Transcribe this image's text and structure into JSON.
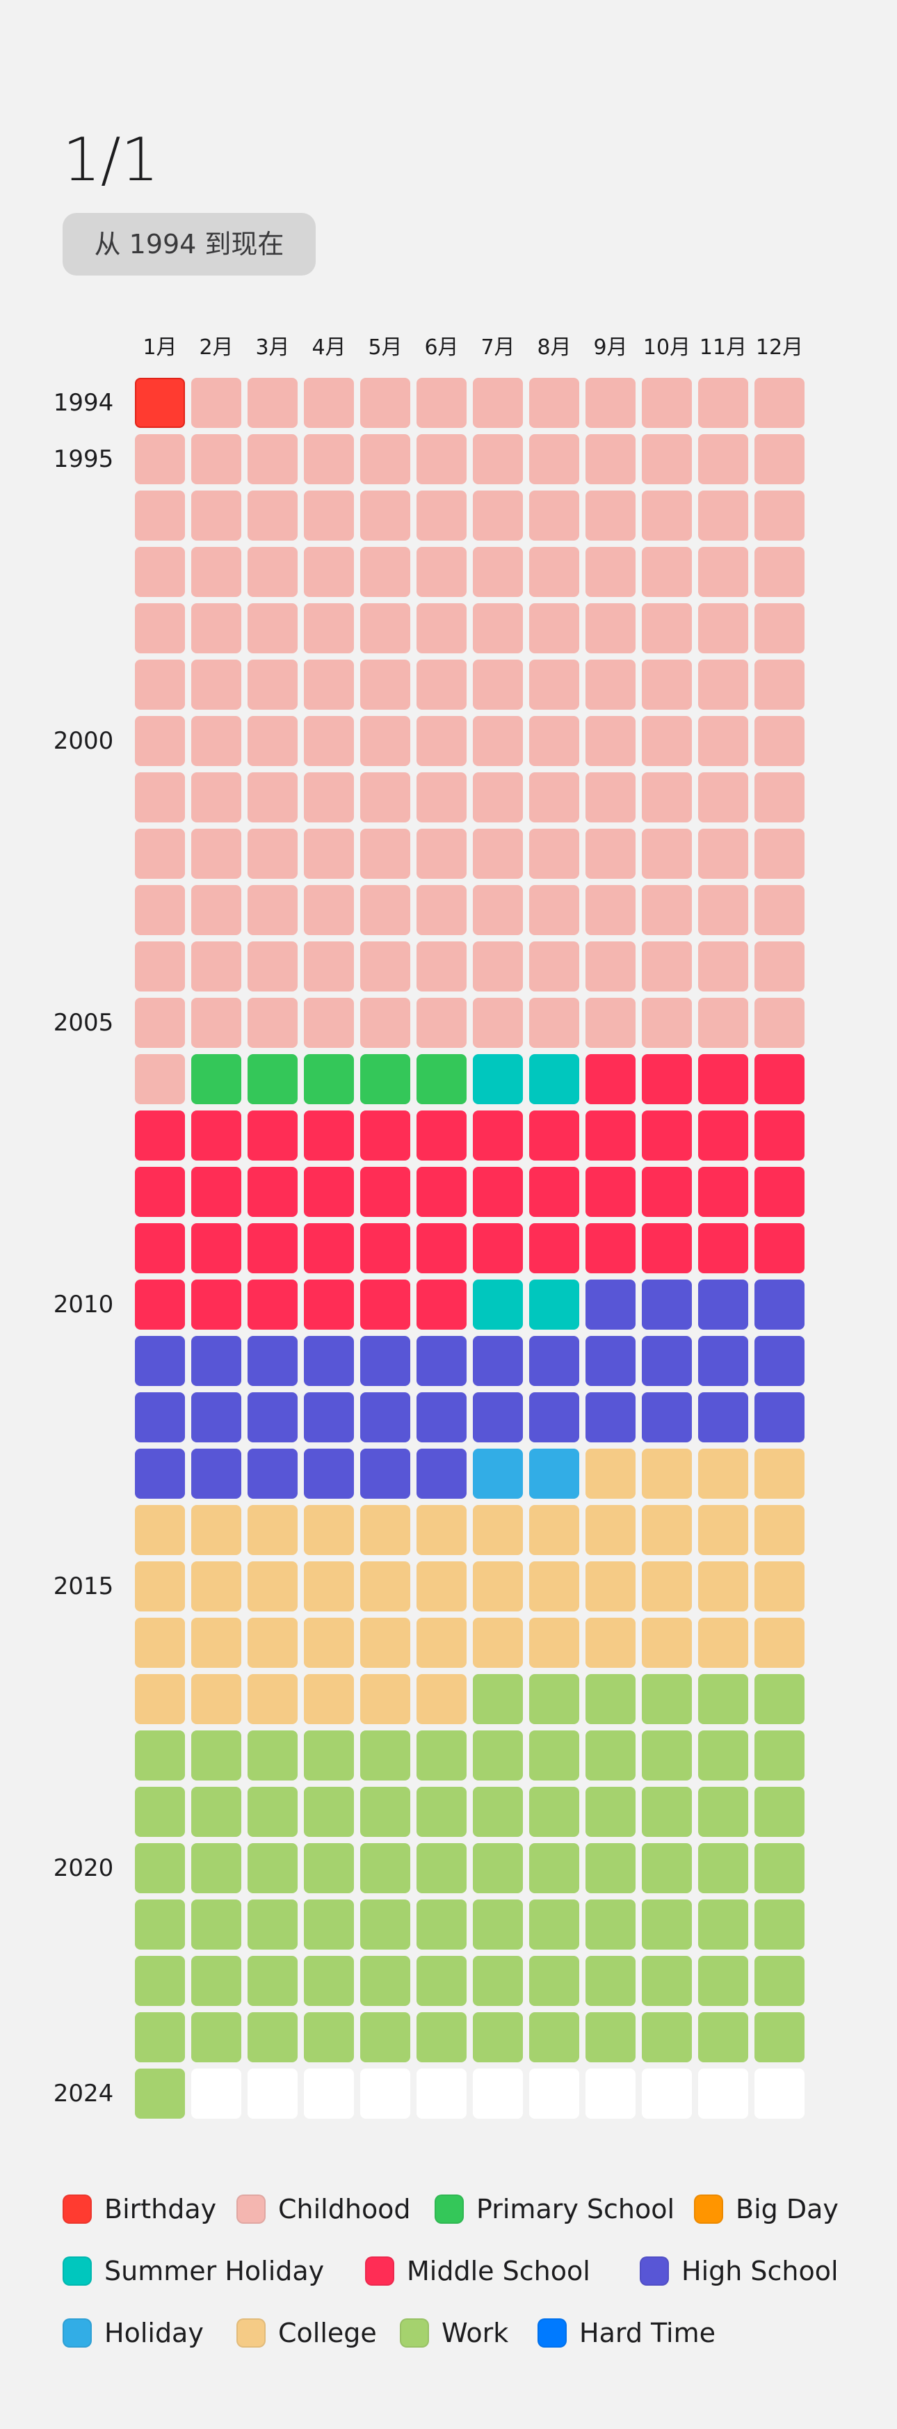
{
  "header": {
    "title": "1/1",
    "range_label": "从 1994 到现在"
  },
  "months": [
    "1月",
    "2月",
    "3月",
    "4月",
    "5月",
    "6月",
    "7月",
    "8月",
    "9月",
    "10月",
    "11月",
    "12月"
  ],
  "years": [
    {
      "row": 0,
      "label": "1994"
    },
    {
      "row": 1,
      "label": "1995"
    },
    {
      "row": 6,
      "label": "2000"
    },
    {
      "row": 11,
      "label": "2005"
    },
    {
      "row": 16,
      "label": "2010"
    },
    {
      "row": 21,
      "label": "2015"
    },
    {
      "row": 26,
      "label": "2020"
    },
    {
      "row": 30,
      "label": "2024"
    }
  ],
  "colors": {
    "birthday": "#ff3b30",
    "childhood": "#f4b6b0",
    "primary": "#34c759",
    "bigday": "#ff9500",
    "summer": "#00c7be",
    "middle": "#ff2d55",
    "high": "#5856d6",
    "holiday": "#32ade6",
    "college": "#f5cb86",
    "work": "#a5d26e",
    "hardtime": "#007aff",
    "future": "#ffffff"
  },
  "periods": [
    {
      "key": "birthday",
      "start": 0,
      "end": 0
    },
    {
      "key": "childhood",
      "start": 1,
      "end": 144
    },
    {
      "key": "primary",
      "start": 145,
      "end": 149
    },
    {
      "key": "summer",
      "start": 150,
      "end": 151
    },
    {
      "key": "middle",
      "start": 152,
      "end": 197
    },
    {
      "key": "summer",
      "start": 198,
      "end": 199
    },
    {
      "key": "high",
      "start": 200,
      "end": 233
    },
    {
      "key": "holiday",
      "start": 234,
      "end": 235
    },
    {
      "key": "college",
      "start": 236,
      "end": 281
    },
    {
      "key": "work",
      "start": 282,
      "end": 360
    },
    {
      "key": "future",
      "start": 361,
      "end": 371
    }
  ],
  "legend": [
    {
      "key": "birthday",
      "label": "Birthday"
    },
    {
      "key": "childhood",
      "label": "Childhood"
    },
    {
      "key": "primary",
      "label": "Primary School"
    },
    {
      "key": "bigday",
      "label": "Big Day"
    },
    {
      "key": "summer",
      "label": "Summer Holiday"
    },
    {
      "key": "middle",
      "label": "Middle School"
    },
    {
      "key": "high",
      "label": "High School"
    },
    {
      "key": "holiday",
      "label": "Holiday"
    },
    {
      "key": "college",
      "label": "College"
    },
    {
      "key": "work",
      "label": "Work"
    },
    {
      "key": "hardtime",
      "label": "Hard Time"
    }
  ]
}
